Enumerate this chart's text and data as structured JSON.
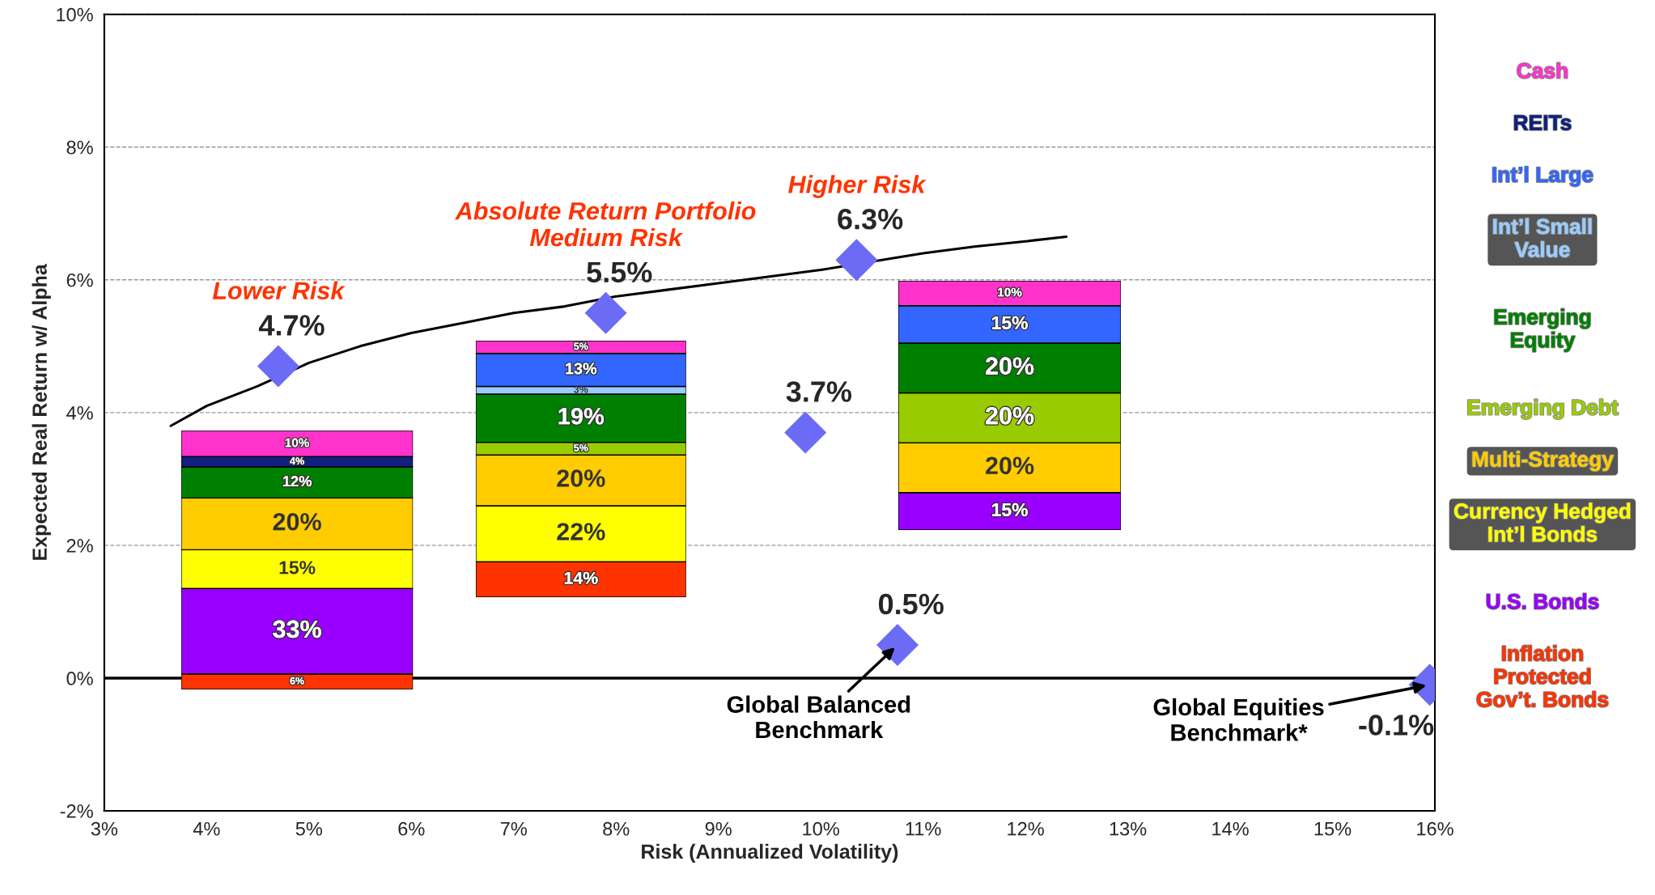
{
  "chart_data": [
    {
      "type": "scatter",
      "xlabel": "Risk (Annualized Volatility)",
      "ylabel": "Expected Real Return w/ Alpha",
      "xlim": [
        3,
        16
      ],
      "ylim": [
        -2,
        10
      ],
      "xticks": [
        {
          "value": 3,
          "label": "3%"
        },
        {
          "value": 4,
          "label": "4%"
        },
        {
          "value": 5,
          "label": "5%"
        },
        {
          "value": 6,
          "label": "6%"
        },
        {
          "value": 7,
          "label": "7%"
        },
        {
          "value": 8,
          "label": "8%"
        },
        {
          "value": 9,
          "label": "9%"
        },
        {
          "value": 10,
          "label": "10%"
        },
        {
          "value": 11,
          "label": "11%"
        },
        {
          "value": 12,
          "label": "12%"
        },
        {
          "value": 13,
          "label": "13%"
        },
        {
          "value": 14,
          "label": "14%"
        },
        {
          "value": 15,
          "label": "15%"
        },
        {
          "value": 16,
          "label": "16%"
        }
      ],
      "yticks": [
        {
          "value": -2,
          "label": "-2%"
        },
        {
          "value": 0,
          "label": "0%"
        },
        {
          "value": 2,
          "label": "2%"
        },
        {
          "value": 4,
          "label": "4%"
        },
        {
          "value": 6,
          "label": "6%"
        },
        {
          "value": 8,
          "label": "8%"
        },
        {
          "value": 10,
          "label": "10%"
        }
      ],
      "grid": "y",
      "ref_lines": [
        {
          "axis": "y",
          "value": 0,
          "color": "#000000",
          "line_style": "solid"
        }
      ],
      "series": [
        {
          "type": "line",
          "color": "#000000",
          "line_style": "solid",
          "marker": "none",
          "x": [
            3.65,
            4.0,
            4.5,
            5.0,
            5.5,
            6.0,
            6.5,
            7.0,
            7.5,
            8.0,
            8.5,
            9.0,
            9.5,
            10.0,
            11.0,
            11.5,
            12.0,
            12.4
          ],
          "values": [
            3.8,
            4.1,
            4.4,
            4.75,
            5.0,
            5.2,
            5.35,
            5.5,
            5.6,
            5.75,
            5.85,
            5.95,
            6.05,
            6.15,
            6.4,
            6.5,
            6.58,
            6.65
          ]
        },
        {
          "type": "scatter",
          "color": "#6b6bf5",
          "marker": "diamond",
          "x": [
            4.7,
            7.9,
            10.35,
            9.85,
            10.75,
            15.95
          ],
          "values": [
            4.7,
            5.5,
            6.3,
            3.7,
            0.5,
            -0.1
          ],
          "value_labels": [
            "4.7%",
            "5.5%",
            "6.3%",
            "3.7%",
            "0.5%",
            "-0.1%"
          ]
        }
      ],
      "annotations": [
        {
          "text": "Lower Risk",
          "x": 4.7,
          "y": 4.7
        },
        {
          "text": "Absolute Return Portfolio\nMedium Risk",
          "x": 7.9,
          "y": 5.5
        },
        {
          "text": "Higher Risk",
          "x": 10.35,
          "y": 6.3
        },
        {
          "text": "Global Balanced\nBenchmark",
          "x": 10.75,
          "y": 0.5
        },
        {
          "text": "Global Equities\nBenchmark*",
          "x": 15.95,
          "y": -0.1
        }
      ]
    },
    {
      "type": "bar",
      "stacked": true,
      "categories": [
        null
      ],
      "series": [
        {
          "name": "Inflation\nProtected\nGov’t. Bonds",
          "color": "#ff3300",
          "values": [
            6
          ],
          "value_labels": [
            "6%"
          ]
        },
        {
          "color": "#9900ff",
          "values": [
            33
          ],
          "value_labels": [
            "33%"
          ]
        },
        {
          "name": "Currency Hedged\nInt’l Bonds",
          "color": "#ffff00",
          "values": [
            15
          ],
          "value_labels": [
            "15%"
          ]
        },
        {
          "color": "#ffcc00",
          "values": [
            20
          ],
          "value_labels": [
            "20%"
          ]
        },
        {
          "color": "#008000",
          "values": [
            12
          ],
          "value_labels": [
            "12%"
          ]
        },
        {
          "name": "REITs",
          "color": "#102080",
          "values": [
            4
          ],
          "value_labels": [
            "4%"
          ]
        },
        {
          "color": "#ff33cc",
          "values": [
            10
          ],
          "value_labels": [
            "10%"
          ]
        }
      ]
    },
    {
      "type": "bar",
      "stacked": true,
      "categories": [
        null
      ],
      "series": [
        {
          "color": "#ff3300",
          "values": [
            14
          ],
          "value_labels": [
            "14%"
          ]
        },
        {
          "color": "#ffff00",
          "values": [
            22
          ],
          "value_labels": [
            "22%"
          ]
        },
        {
          "color": "#ffcc00",
          "values": [
            20
          ],
          "value_labels": [
            "20%"
          ]
        },
        {
          "color": "#99cc00",
          "values": [
            5
          ],
          "value_labels": [
            "5%"
          ]
        },
        {
          "color": "#008000",
          "values": [
            19
          ],
          "value_labels": [
            "19%"
          ]
        },
        {
          "name": "Int’l Small\nValue",
          "color": "#99ccff",
          "values": [
            3
          ],
          "value_labels": [
            "3%"
          ]
        },
        {
          "color": "#3366ff",
          "values": [
            13
          ],
          "value_labels": [
            "13%"
          ]
        },
        {
          "color": "#ff33cc",
          "values": [
            5
          ],
          "value_labels": [
            "5%"
          ]
        }
      ]
    },
    {
      "type": "bar",
      "stacked": true,
      "categories": [
        null
      ],
      "series": [
        {
          "name": "U.S. Bonds",
          "color": "#9900ff",
          "values": [
            15
          ],
          "value_labels": [
            "15%"
          ]
        },
        {
          "name": "Multi-Strategy",
          "color": "#ffcc00",
          "values": [
            20
          ],
          "value_labels": [
            "20%"
          ]
        },
        {
          "name": "Emerging Debt",
          "color": "#99cc00",
          "values": [
            20
          ],
          "value_labels": [
            "20%"
          ]
        },
        {
          "name": "Emerging\nEquity",
          "color": "#008000",
          "values": [
            20
          ],
          "value_labels": [
            "20%"
          ]
        },
        {
          "name": "Int’l Large",
          "color": "#3366ff",
          "values": [
            15
          ],
          "value_labels": [
            "15%"
          ]
        },
        {
          "name": "Cash",
          "color": "#ff33cc",
          "values": [
            10
          ],
          "value_labels": [
            "10%"
          ]
        }
      ]
    }
  ]
}
